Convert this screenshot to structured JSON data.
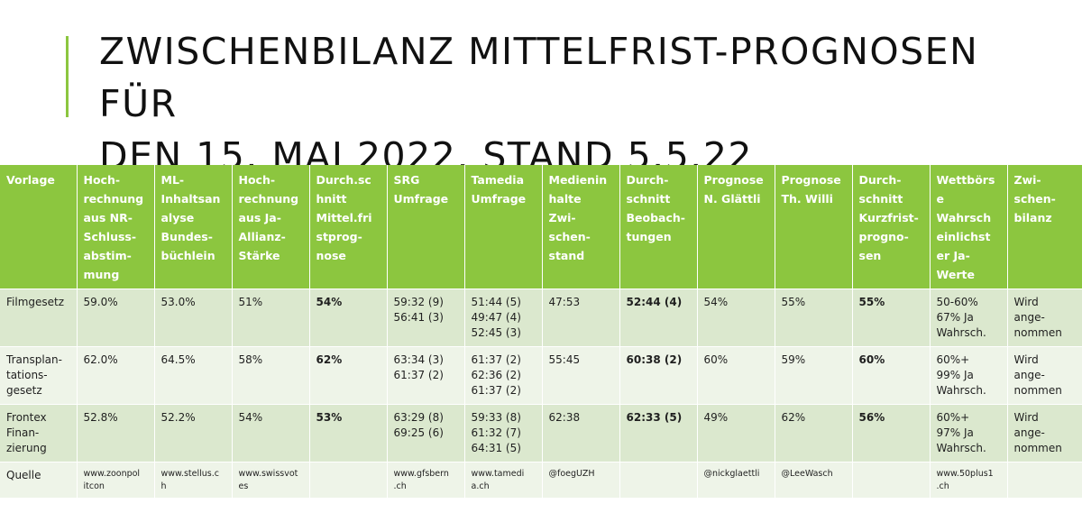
{
  "title": {
    "line1": "ZWISCHENBILANZ MITTELFRIST-PROGNOSEN FÜR",
    "line2": "DEN 15. MAI 2022, STAND 5.5.22"
  },
  "colors": {
    "header_bg": "#8cc63f",
    "row_dark": "#dbe8ce",
    "row_light": "#eef4e8",
    "accent": "#8cc63f"
  },
  "table": {
    "headers": [
      "Vorlage",
      "Hoch-\nrechnung\naus NR-\nSchluss-\nabstim-\nmung",
      "ML-\nInhaltsan\nalyse\nBundes-\nbüchlein",
      "Hoch-\nrechnung\naus Ja-\nAllianz-\nStärke",
      "Durch.sc\nhnitt\nMittel.fri\nstprog-\nnose",
      "SRG\nUmfrage",
      "Tamedia\nUmfrage",
      "Medienin\nhalte\nZwi-\nschen-\nstand",
      "Durch-\nschnitt\nBeobach-\ntungen",
      "Prognose\nN. Glättli",
      "Prognose\nTh. Willi",
      "Durch-\nschnitt\nKurzfrist-\nprogno-\nsen",
      "Wettbörs\ne\nWahrsch\neinlichst\ner Ja-\nWerte",
      "Zwi-\nschen-\nbilanz"
    ],
    "rows": [
      [
        "Filmgesetz",
        "59.0%",
        "53.0%",
        "51%",
        "54%",
        "59:32 (9)\n56:41 (3)",
        "51:44 (5)\n49:47 (4)\n52:45 (3)",
        "47:53",
        "52:44 (4)",
        "54%",
        "55%",
        "55%",
        "50-60%\n67% Ja\nWahrsch.",
        "Wird\nange-\nnommen"
      ],
      [
        "Transplan-\ntations-\ngesetz",
        "62.0%",
        "64.5%",
        "58%",
        "62%",
        "63:34 (3)\n61:37 (2)",
        "61:37 (2)\n62:36 (2)\n61:37 (2)",
        "55:45",
        "60:38 (2)",
        "60%",
        "59%",
        "60%",
        "60%+\n99% Ja\nWahrsch.",
        "Wird\nange-\nnommen"
      ],
      [
        "Frontex\nFinan-\nzierung",
        "52.8%",
        "52.2%",
        "54%",
        "53%",
        "63:29 (8)\n69:25 (6)",
        "59:33 (8)\n61:32 (7)\n64:31 (5)",
        "62:38",
        "62:33 (5)",
        "49%",
        "62%",
        "56%",
        "60%+\n97% Ja\nWahrsch.",
        "Wird\nange-\nnommen"
      ],
      [
        "Quelle",
        "www.zoonpol\nitcon",
        "www.stellus.c\nh",
        "www.swissvot\nes",
        "",
        "www.gfsbern\n.ch",
        "www.tamedi\na.ch",
        "@foegUZH",
        "",
        "@nickglaettli",
        "@LeeWasch",
        "",
        "www.50plus1\n.ch",
        ""
      ]
    ]
  }
}
